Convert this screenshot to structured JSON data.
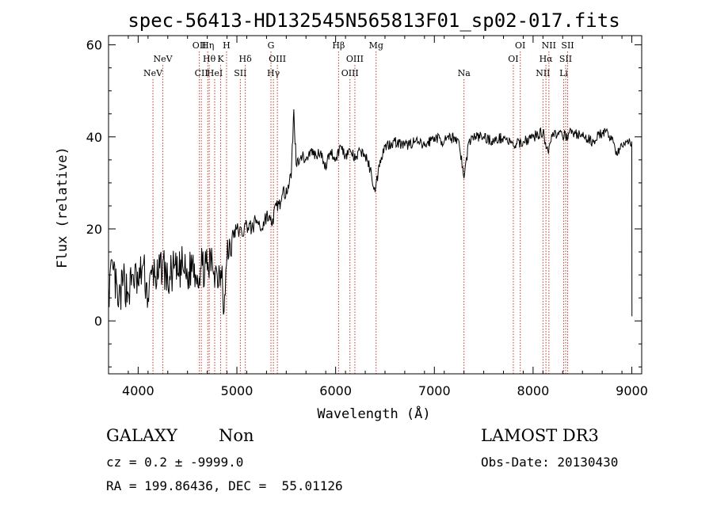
{
  "chart_data": {
    "type": "line",
    "title": "spec-56413-HD132545N565813F01_sp02-017.fits",
    "xlabel": "Wavelength (Å)",
    "ylabel": "Flux (relative)",
    "xlim": [
      3700,
      9100
    ],
    "ylim": [
      -11.5,
      62
    ],
    "x_ticks": [
      4000,
      5000,
      6000,
      7000,
      8000,
      9000
    ],
    "y_ticks": [
      0,
      20,
      40,
      60
    ],
    "grid": false,
    "line_color": "#000000",
    "marker_color": "#c0392b",
    "series": [
      {
        "x": [
          3700,
          3750,
          3800,
          3850,
          3900,
          3950,
          4000,
          4050,
          4100,
          4150,
          4200,
          4250,
          4300,
          4350,
          4400,
          4450,
          4500,
          4550,
          4600,
          4650,
          4700,
          4750,
          4800,
          4850,
          4870,
          4900,
          4950,
          5000,
          5050,
          5100,
          5150,
          5200,
          5250,
          5300,
          5350,
          5400,
          5450,
          5500,
          5550,
          5577,
          5600,
          5650,
          5700,
          5750,
          5800,
          5850,
          5890,
          5950,
          6000,
          6050,
          6100,
          6150,
          6200,
          6250,
          6300,
          6350,
          6400,
          6450,
          6500,
          6600,
          6700,
          6800,
          6900,
          7000,
          7100,
          7200,
          7250,
          7300,
          7350,
          7400,
          7500,
          7600,
          7700,
          7800,
          7900,
          8000,
          8100,
          8150,
          8200,
          8300,
          8400,
          8500,
          8600,
          8700,
          8800,
          8850,
          8900,
          8950,
          9000,
          9001
        ],
        "y": [
          7,
          11,
          3,
          9,
          6,
          10,
          8,
          12,
          5,
          11,
          9,
          13,
          8,
          11,
          10,
          12,
          9,
          13,
          10,
          12,
          11,
          13,
          10,
          12,
          2,
          14,
          18,
          20,
          19,
          21,
          20,
          22,
          20,
          23,
          21,
          25,
          26,
          29,
          31,
          46,
          34,
          36,
          35,
          37,
          36,
          37,
          33,
          37,
          35,
          38,
          36,
          37,
          35,
          37,
          36,
          33,
          28,
          35,
          38,
          39,
          38,
          39,
          38,
          40,
          39,
          40,
          39,
          31,
          39,
          40,
          40,
          39,
          40,
          38,
          39,
          40,
          41,
          37,
          41,
          40,
          41,
          40,
          39,
          41,
          40,
          36,
          38,
          39,
          39,
          1
        ]
      }
    ],
    "lines": [
      {
        "x": 4150,
        "label": "NeV",
        "row": 3
      },
      {
        "x": 4250,
        "label": "NeV",
        "row": 2
      },
      {
        "x": 4620,
        "label": "OII",
        "row": 1
      },
      {
        "x": 4640,
        "label": "CII",
        "row": 3
      },
      {
        "x": 4705,
        "label": "Hη",
        "row": 1
      },
      {
        "x": 4720,
        "label": "Hθ",
        "row": 2
      },
      {
        "x": 4775,
        "label": "HeI",
        "row": 3
      },
      {
        "x": 4835,
        "label": "K",
        "row": 2
      },
      {
        "x": 4895,
        "label": "H",
        "row": 1
      },
      {
        "x": 5035,
        "label": "SII",
        "row": 3
      },
      {
        "x": 5085,
        "label": "Hδ",
        "row": 2
      },
      {
        "x": 5345,
        "label": "G",
        "row": 1
      },
      {
        "x": 5370,
        "label": "Hγ",
        "row": 3
      },
      {
        "x": 5410,
        "label": "OIII",
        "row": 2
      },
      {
        "x": 6030,
        "label": "Hβ",
        "row": 1
      },
      {
        "x": 6145,
        "label": "OIII",
        "row": 3
      },
      {
        "x": 6195,
        "label": "OIII",
        "row": 2
      },
      {
        "x": 6410,
        "label": "Mg",
        "row": 1
      },
      {
        "x": 7300,
        "label": "Na",
        "row": 3
      },
      {
        "x": 7800,
        "label": "OI",
        "row": 2
      },
      {
        "x": 7870,
        "label": "OI",
        "row": 1
      },
      {
        "x": 8100,
        "label": "NII",
        "row": 3
      },
      {
        "x": 8130,
        "label": "Hα",
        "row": 2
      },
      {
        "x": 8160,
        "label": "NII",
        "row": 1
      },
      {
        "x": 8310,
        "label": "Li",
        "row": 3
      },
      {
        "x": 8330,
        "label": "SII",
        "row": 2
      },
      {
        "x": 8350,
        "label": "SII",
        "row": 1
      }
    ]
  },
  "info": {
    "object_class": "GALAXY",
    "subclass": "Non",
    "survey": "LAMOST DR3",
    "cz": "cz = 0.2 ± -9999.0",
    "obs_date": "Obs-Date: 20130430",
    "coords": "RA = 199.86436, DEC =  55.01126"
  }
}
